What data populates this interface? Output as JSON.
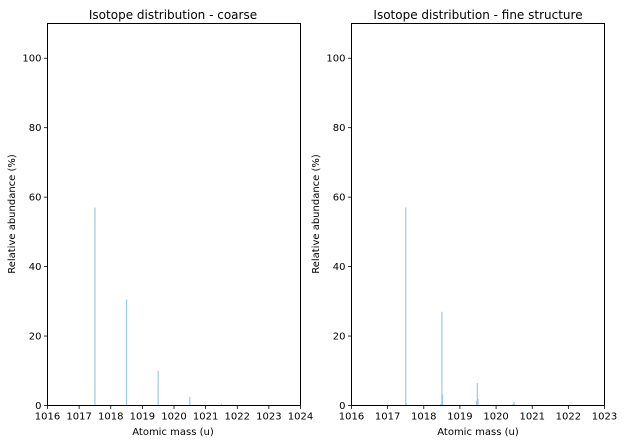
{
  "chart_data": [
    {
      "type": "bar",
      "title": "Isotope distribution - coarse",
      "xlabel": "Atomic mass (u)",
      "ylabel": "Relative abundance (%)",
      "xlim": [
        1016,
        1024
      ],
      "ylim": [
        0,
        110
      ],
      "xticks": [
        1016,
        1017,
        1018,
        1019,
        1020,
        1021,
        1022,
        1023,
        1024
      ],
      "yticks": [
        0,
        20,
        40,
        60,
        80,
        100
      ],
      "grid": false,
      "bar_color": "#9ecae1",
      "series": [
        {
          "name": "coarse",
          "x": [
            1017.5,
            1018.5,
            1019.5,
            1020.5,
            1021.5
          ],
          "values": [
            57,
            30.5,
            10,
            2.5,
            0.5
          ]
        }
      ]
    },
    {
      "type": "bar",
      "title": "Isotope distribution - fine structure",
      "xlabel": "Atomic mass (u)",
      "ylabel": "Relative abundance (%)",
      "xlim": [
        1016,
        1023
      ],
      "ylim": [
        0,
        110
      ],
      "xticks": [
        1016,
        1017,
        1018,
        1019,
        1020,
        1021,
        1022,
        1023
      ],
      "yticks": [
        0,
        20,
        40,
        60,
        80,
        100
      ],
      "grid": false,
      "bar_color": "#9ecae1",
      "series": [
        {
          "name": "fine structure",
          "x": [
            1017.5,
            1017.52,
            1018.47,
            1018.5,
            1018.52,
            1019.46,
            1019.48,
            1019.5,
            1020.47,
            1020.5,
            1021.5
          ],
          "values": [
            57,
            0.6,
            0.4,
            27,
            3.2,
            1.3,
            6.5,
            2.0,
            0.4,
            1.0,
            0.2
          ]
        }
      ]
    }
  ]
}
